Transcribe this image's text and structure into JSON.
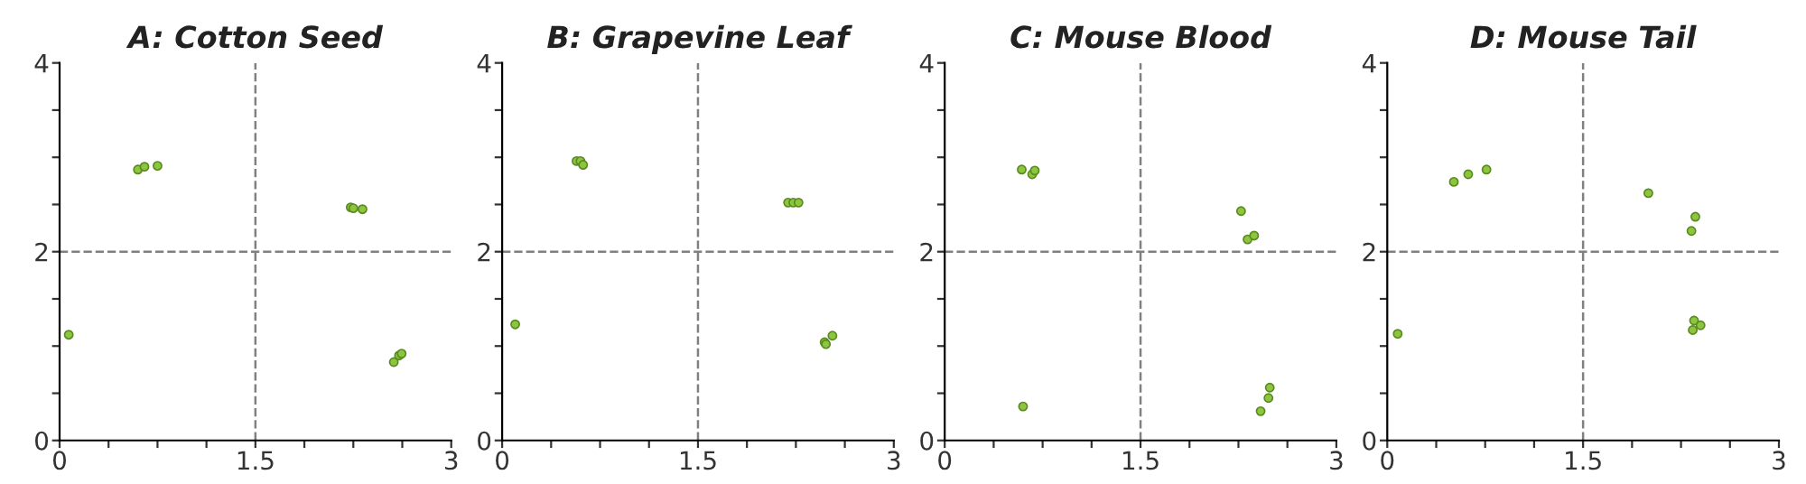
{
  "chart_data": [
    {
      "type": "scatter",
      "title": "A: Cotton Seed",
      "x": [
        0.6,
        0.65,
        0.75,
        0.07,
        2.23,
        2.25,
        2.32,
        2.56,
        2.6,
        2.62
      ],
      "series": [
        {
          "color": "#8cc63f",
          "values": [
            2.87,
            2.9,
            2.91,
            1.12,
            2.47,
            2.46,
            2.45,
            0.83,
            0.9,
            0.92
          ]
        }
      ],
      "xlim": [
        0,
        3
      ],
      "ylim": [
        0,
        4
      ],
      "xticks": [
        0,
        {
          "value": 0.375,
          "label": null
        },
        {
          "value": 0.75,
          "label": null
        },
        {
          "value": 1.125,
          "label": null
        },
        1.5,
        {
          "value": 1.875,
          "label": null
        },
        {
          "value": 2.25,
          "label": null
        },
        {
          "value": 2.625,
          "label": null
        },
        3
      ],
      "yticks": [
        0,
        {
          "value": 0.5,
          "label": null
        },
        {
          "value": 1,
          "label": null
        },
        {
          "value": 1.5,
          "label": null
        },
        2,
        {
          "value": 2.5,
          "label": null
        },
        {
          "value": 3,
          "label": null
        },
        {
          "value": 3.5,
          "label": null
        },
        4
      ],
      "ref_lines": [
        {
          "axis": "x",
          "value": 1.5,
          "color": "#808080",
          "line_style": "dashed"
        },
        {
          "axis": "y",
          "value": 2,
          "color": "#808080",
          "line_style": "dashed"
        }
      ],
      "marker": "circle"
    },
    {
      "type": "scatter",
      "title": "B: Grapevine Leaf",
      "x": [
        0.57,
        0.6,
        0.62,
        0.1,
        2.19,
        2.23,
        2.27,
        2.47,
        2.48,
        2.53
      ],
      "series": [
        {
          "color": "#8cc63f",
          "values": [
            2.96,
            2.96,
            2.92,
            1.23,
            2.52,
            2.52,
            2.52,
            1.04,
            1.02,
            1.11
          ]
        }
      ],
      "xlim": [
        0,
        3
      ],
      "ylim": [
        0,
        4
      ],
      "xticks": [
        0,
        {
          "value": 0.375,
          "label": null
        },
        {
          "value": 0.75,
          "label": null
        },
        {
          "value": 1.125,
          "label": null
        },
        1.5,
        {
          "value": 1.875,
          "label": null
        },
        {
          "value": 2.25,
          "label": null
        },
        {
          "value": 2.625,
          "label": null
        },
        3
      ],
      "yticks": [
        0,
        {
          "value": 0.5,
          "label": null
        },
        {
          "value": 1,
          "label": null
        },
        {
          "value": 1.5,
          "label": null
        },
        2,
        {
          "value": 2.5,
          "label": null
        },
        {
          "value": 3,
          "label": null
        },
        {
          "value": 3.5,
          "label": null
        },
        4
      ],
      "ref_lines": [
        {
          "axis": "x",
          "value": 1.5,
          "color": "#808080",
          "line_style": "dashed"
        },
        {
          "axis": "y",
          "value": 2,
          "color": "#808080",
          "line_style": "dashed"
        }
      ],
      "marker": "circle"
    },
    {
      "type": "scatter",
      "title": "C: Mouse Blood",
      "x": [
        0.59,
        0.67,
        0.69,
        0.6,
        2.27,
        2.32,
        2.37,
        2.49,
        2.48,
        2.42
      ],
      "series": [
        {
          "color": "#8cc63f",
          "values": [
            2.87,
            2.82,
            2.86,
            0.36,
            2.43,
            2.13,
            2.17,
            0.56,
            0.45,
            0.31
          ]
        }
      ],
      "xlim": [
        0,
        3
      ],
      "ylim": [
        0,
        4
      ],
      "xticks": [
        0,
        {
          "value": 0.375,
          "label": null
        },
        {
          "value": 0.75,
          "label": null
        },
        {
          "value": 1.125,
          "label": null
        },
        1.5,
        {
          "value": 1.875,
          "label": null
        },
        {
          "value": 2.25,
          "label": null
        },
        {
          "value": 2.625,
          "label": null
        },
        3
      ],
      "yticks": [
        0,
        {
          "value": 0.5,
          "label": null
        },
        {
          "value": 1,
          "label": null
        },
        {
          "value": 1.5,
          "label": null
        },
        2,
        {
          "value": 2.5,
          "label": null
        },
        {
          "value": 3,
          "label": null
        },
        {
          "value": 3.5,
          "label": null
        },
        4
      ],
      "ref_lines": [
        {
          "axis": "x",
          "value": 1.5,
          "color": "#808080",
          "line_style": "dashed"
        },
        {
          "axis": "y",
          "value": 2,
          "color": "#808080",
          "line_style": "dashed"
        }
      ],
      "marker": "circle"
    },
    {
      "type": "scatter",
      "title": "D: Mouse Tail",
      "x": [
        0.51,
        0.62,
        0.76,
        0.08,
        2.0,
        2.36,
        2.33,
        2.35,
        2.34,
        2.4
      ],
      "series": [
        {
          "color": "#8cc63f",
          "values": [
            2.74,
            2.82,
            2.87,
            1.13,
            2.62,
            2.37,
            2.22,
            1.27,
            1.17,
            1.22
          ]
        }
      ],
      "xlim": [
        0,
        3
      ],
      "ylim": [
        0,
        4
      ],
      "xticks": [
        0,
        {
          "value": 0.375,
          "label": null
        },
        {
          "value": 0.75,
          "label": null
        },
        {
          "value": 1.125,
          "label": null
        },
        1.5,
        {
          "value": 1.875,
          "label": null
        },
        {
          "value": 2.25,
          "label": null
        },
        {
          "value": 2.625,
          "label": null
        },
        3
      ],
      "yticks": [
        0,
        {
          "value": 0.5,
          "label": null
        },
        {
          "value": 1,
          "label": null
        },
        {
          "value": 1.5,
          "label": null
        },
        2,
        {
          "value": 2.5,
          "label": null
        },
        {
          "value": 3,
          "label": null
        },
        {
          "value": 3.5,
          "label": null
        },
        4
      ],
      "ref_lines": [
        {
          "axis": "x",
          "value": 1.5,
          "color": "#808080",
          "line_style": "dashed"
        },
        {
          "axis": "y",
          "value": 2,
          "color": "#808080",
          "line_style": "dashed"
        }
      ],
      "marker": "circle"
    }
  ]
}
